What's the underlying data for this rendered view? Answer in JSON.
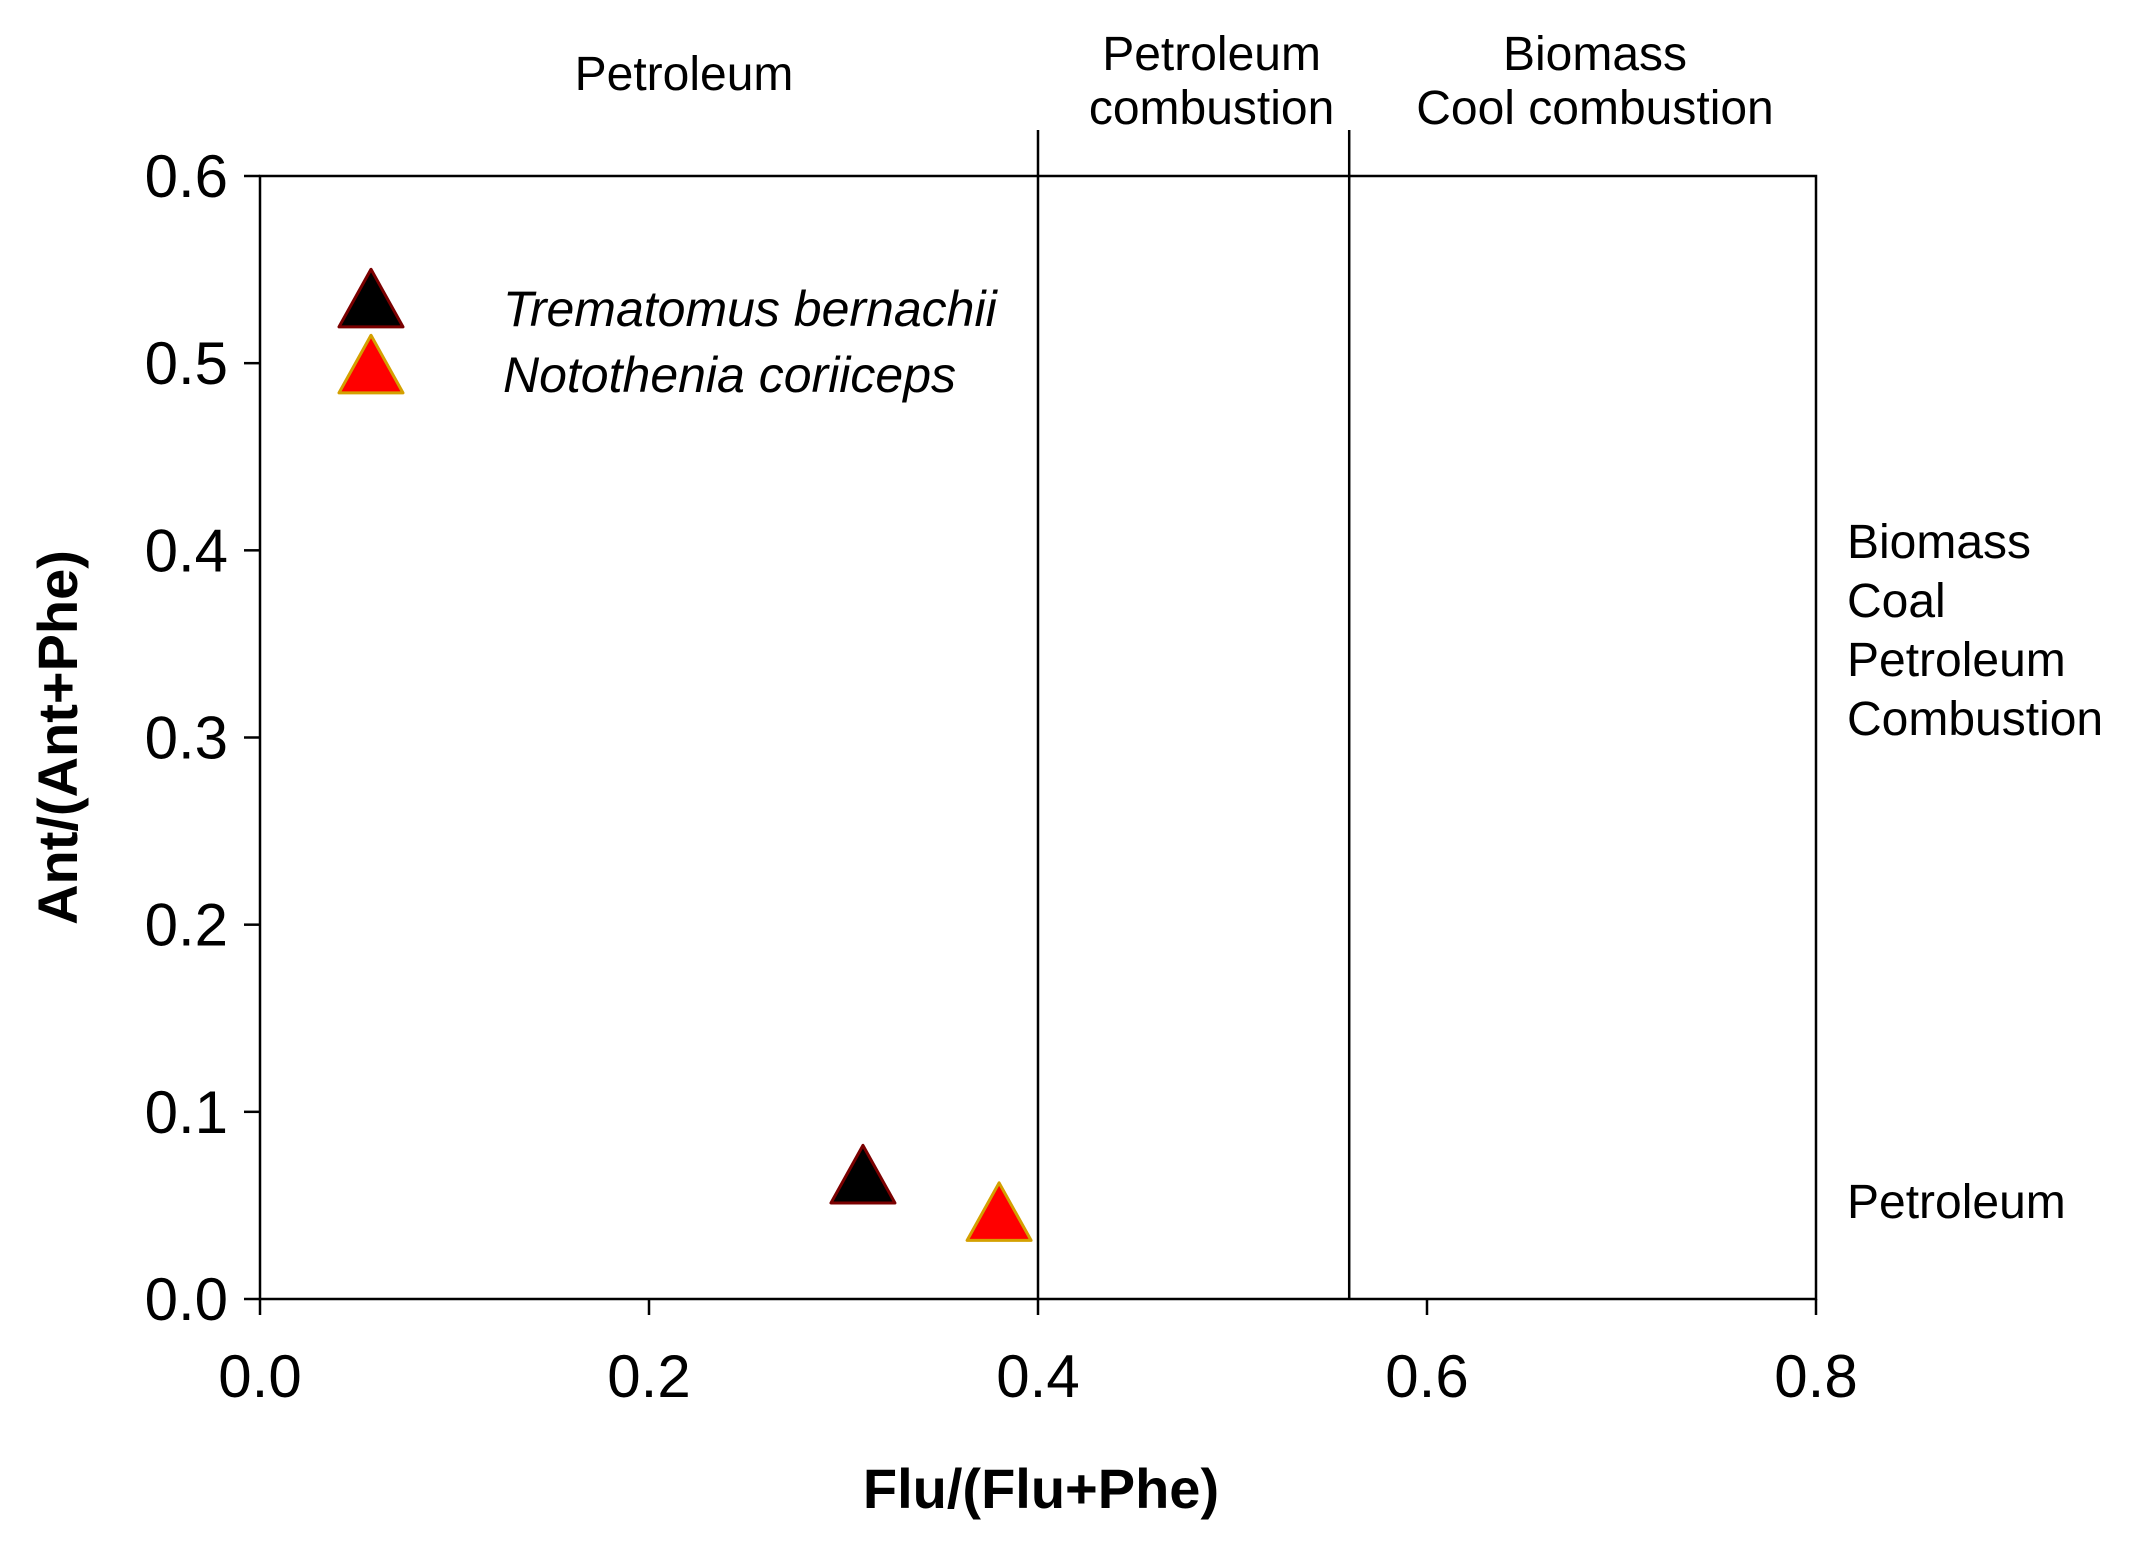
{
  "chart_data": {
    "type": "scatter",
    "title": "",
    "xlabel": "Flu/(Flu+Phe)",
    "ylabel": "Ant/(Ant+Phe)",
    "xlim": [
      0.0,
      0.8
    ],
    "ylim": [
      0.0,
      0.6
    ],
    "xticks": [
      "0.0",
      "0.2",
      "0.4",
      "0.6",
      "0.8"
    ],
    "yticks": [
      "0.0",
      "0.1",
      "0.2",
      "0.3",
      "0.4",
      "0.5",
      "0.6"
    ],
    "grid": false,
    "legend_position": "top-left",
    "threshold_lines_x": [
      0.4,
      0.56
    ],
    "regions_top": [
      {
        "lines": [
          "Petroleum"
        ],
        "x_center": 0.2
      },
      {
        "lines": [
          "Petroleum",
          "combustion"
        ],
        "x_center": 0.48
      },
      {
        "lines": [
          "Biomass",
          "Cool combustion"
        ],
        "x_center": 0.68
      }
    ],
    "regions_right": [
      {
        "lines": [
          "Biomass",
          "Coal",
          "Petroleum",
          "Combustion"
        ],
        "y_center": 0.4
      },
      {
        "lines": [
          "Petroleum"
        ],
        "y_center": 0.05
      }
    ],
    "series": [
      {
        "name": "Trematomus bernachii",
        "marker": "triangle",
        "color": "#000000",
        "edge_color": "#7a0000",
        "x": [
          0.31
        ],
        "y": [
          0.063
        ]
      },
      {
        "name": "Notothenia coriiceps",
        "marker": "triangle",
        "color": "#ff0000",
        "edge_color": "#d4a000",
        "x": [
          0.38
        ],
        "y": [
          0.043
        ]
      }
    ]
  }
}
